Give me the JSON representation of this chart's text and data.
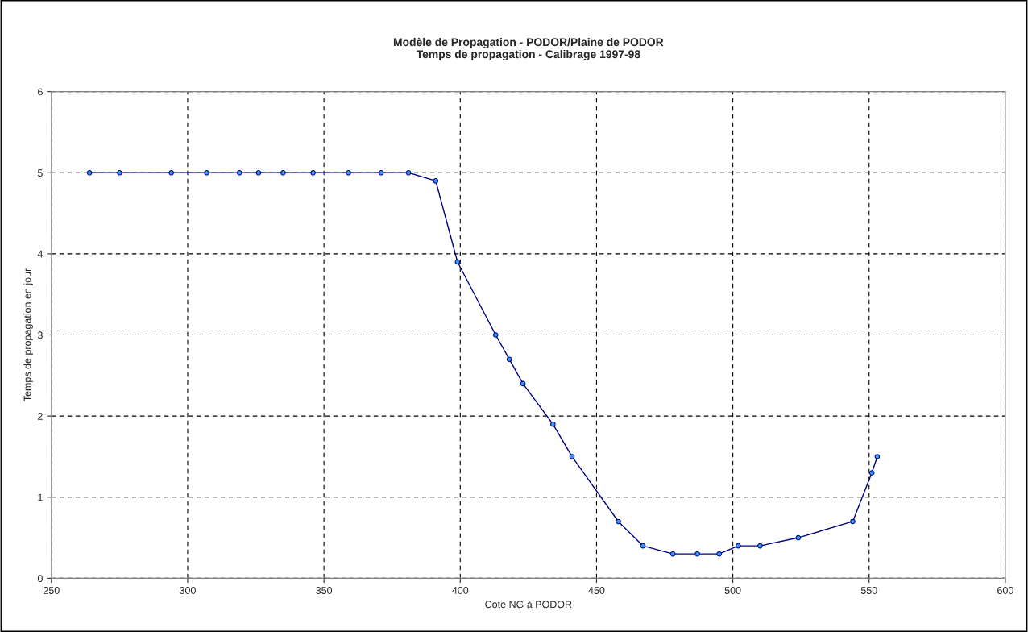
{
  "chart_data": {
    "type": "line",
    "title": "Modèle de Propagation - PODOR/Plaine de PODOR\nTemps de propagation - Calibrage 1997-98",
    "xlabel": "Cote NG à PODOR",
    "ylabel": "Temps de propagation en jour",
    "x": [
      264,
      275,
      294,
      307,
      319,
      326,
      335,
      346,
      359,
      371,
      381,
      391,
      399,
      413,
      418,
      423,
      434,
      441,
      458,
      467,
      478,
      487,
      495,
      502,
      510,
      524,
      544,
      551,
      553
    ],
    "series": [
      {
        "color": "#000080",
        "values": [
          5,
          5,
          5,
          5,
          5,
          5,
          5,
          5,
          5,
          5,
          5,
          4.9,
          3.9,
          3.0,
          2.7,
          2.4,
          1.9,
          1.5,
          0.7,
          0.4,
          0.3,
          0.3,
          0.3,
          0.4,
          0.4,
          0.5,
          0.7,
          1.3,
          1.5
        ]
      }
    ],
    "xlim": [
      250,
      600
    ],
    "xticks": [
      250,
      300,
      350,
      400,
      450,
      500,
      550,
      600
    ],
    "ylim": [
      0,
      6
    ],
    "yticks": [
      0,
      1,
      2,
      3,
      4,
      5,
      6
    ],
    "grid": true,
    "marker": "circle",
    "line_style": "solid"
  }
}
